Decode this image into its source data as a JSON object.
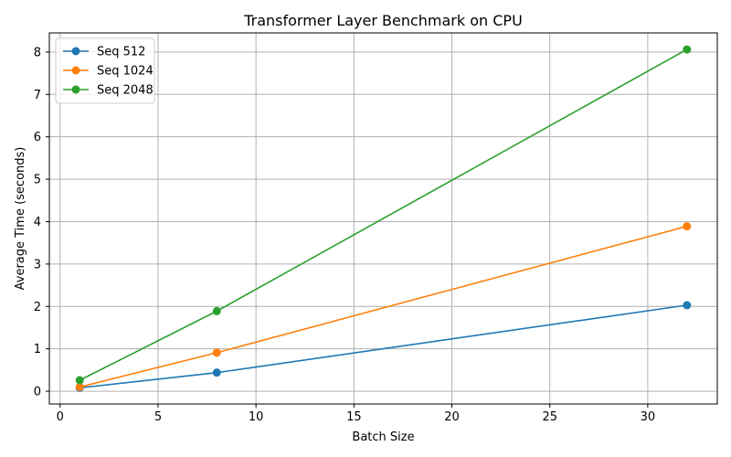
{
  "chart_data": {
    "type": "line",
    "title": "Transformer Layer Benchmark on CPU",
    "xlabel": "Batch Size",
    "ylabel": "Average Time (seconds)",
    "x": [
      1,
      8,
      32
    ],
    "xlim": [
      -0.55,
      33.55
    ],
    "ylim": [
      -0.3,
      8.45
    ],
    "xticks": [
      0,
      5,
      10,
      15,
      20,
      25,
      30
    ],
    "yticks": [
      0,
      1,
      2,
      3,
      4,
      5,
      6,
      7,
      8
    ],
    "grid": true,
    "legend_position": "top-left",
    "series": [
      {
        "name": "Seq 512",
        "color": "#1f77b4",
        "values": [
          0.08,
          0.44,
          2.03
        ]
      },
      {
        "name": "Seq 1024",
        "color": "#ff7f0e",
        "values": [
          0.1,
          0.91,
          3.89
        ]
      },
      {
        "name": "Seq 2048",
        "color": "#2ca02c",
        "values": [
          0.26,
          1.89,
          8.06
        ]
      }
    ]
  }
}
